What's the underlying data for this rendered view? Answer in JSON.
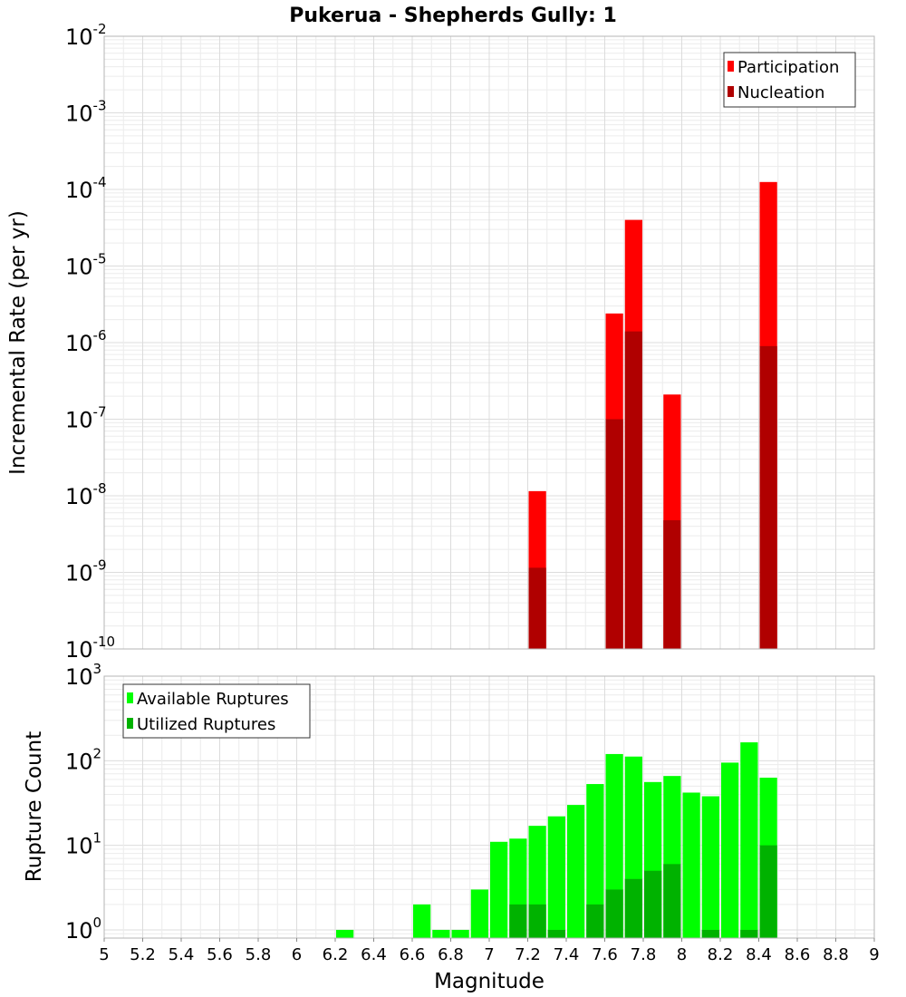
{
  "chart_data": [
    {
      "type": "bar",
      "title": "Pukerua - Shepherds Gully: 1",
      "xlabel": "",
      "ylabel": "Incremental Rate (per yr)",
      "yscale": "log",
      "ylim": [
        1e-10,
        0.01
      ],
      "xlim": [
        5,
        9
      ],
      "y_ticks": [
        {
          "base": "10",
          "exp": "-10"
        },
        {
          "base": "10",
          "exp": "-9"
        },
        {
          "base": "10",
          "exp": "-8"
        },
        {
          "base": "10",
          "exp": "-7"
        },
        {
          "base": "10",
          "exp": "-6"
        },
        {
          "base": "10",
          "exp": "-5"
        },
        {
          "base": "10",
          "exp": "-4"
        },
        {
          "base": "10",
          "exp": "-3"
        },
        {
          "base": "10",
          "exp": "-2"
        }
      ],
      "bin_width": 0.1,
      "legend_position": "top-right",
      "series": [
        {
          "name": "Participation",
          "color": "#ff0000",
          "x": [
            7.25,
            7.65,
            7.75,
            7.95,
            8.45
          ],
          "values": [
            1.15e-08,
            2.4e-06,
            4e-05,
            2.1e-07,
            0.000125
          ]
        },
        {
          "name": "Nucleation",
          "color": "#b00000",
          "x": [
            7.25,
            7.65,
            7.75,
            7.95,
            8.45
          ],
          "values": [
            1.15e-09,
            1e-07,
            1.4e-06,
            4.8e-09,
            9e-07
          ]
        }
      ]
    },
    {
      "type": "bar",
      "title": "",
      "xlabel": "Magnitude",
      "ylabel": "Rupture Count",
      "yscale": "log",
      "ylim": [
        0.8,
        1000
      ],
      "xlim": [
        5,
        9
      ],
      "y_ticks": [
        {
          "base": "10",
          "exp": "0"
        },
        {
          "base": "10",
          "exp": "1"
        },
        {
          "base": "10",
          "exp": "2"
        },
        {
          "base": "10",
          "exp": "3"
        }
      ],
      "x_ticks": [
        "5",
        "5.2",
        "5.4",
        "5.6",
        "5.8",
        "6",
        "6.2",
        "6.4",
        "6.6",
        "6.8",
        "7",
        "7.2",
        "7.4",
        "7.6",
        "7.8",
        "8",
        "8.2",
        "8.4",
        "8.6",
        "8.8",
        "9"
      ],
      "bin_width": 0.1,
      "legend_position": "top-left",
      "series": [
        {
          "name": "Available Ruptures",
          "color": "#00ff00",
          "x": [
            6.25,
            6.65,
            6.75,
            6.85,
            6.95,
            7.05,
            7.15,
            7.25,
            7.35,
            7.45,
            7.55,
            7.65,
            7.75,
            7.85,
            7.95,
            8.05,
            8.15,
            8.25,
            8.35,
            8.45
          ],
          "values": [
            1,
            2,
            1,
            1,
            3,
            11,
            12,
            17,
            22,
            30,
            53,
            120,
            112,
            56,
            66,
            42,
            38,
            95,
            165,
            63
          ]
        },
        {
          "name": "Utilized Ruptures",
          "color": "#00b200",
          "x": [
            7.15,
            7.25,
            7.35,
            7.55,
            7.65,
            7.75,
            7.85,
            7.95,
            8.15,
            8.35,
            8.45
          ],
          "values": [
            2,
            2,
            1,
            2,
            3,
            4,
            5,
            6,
            1,
            1,
            10
          ]
        }
      ]
    }
  ]
}
